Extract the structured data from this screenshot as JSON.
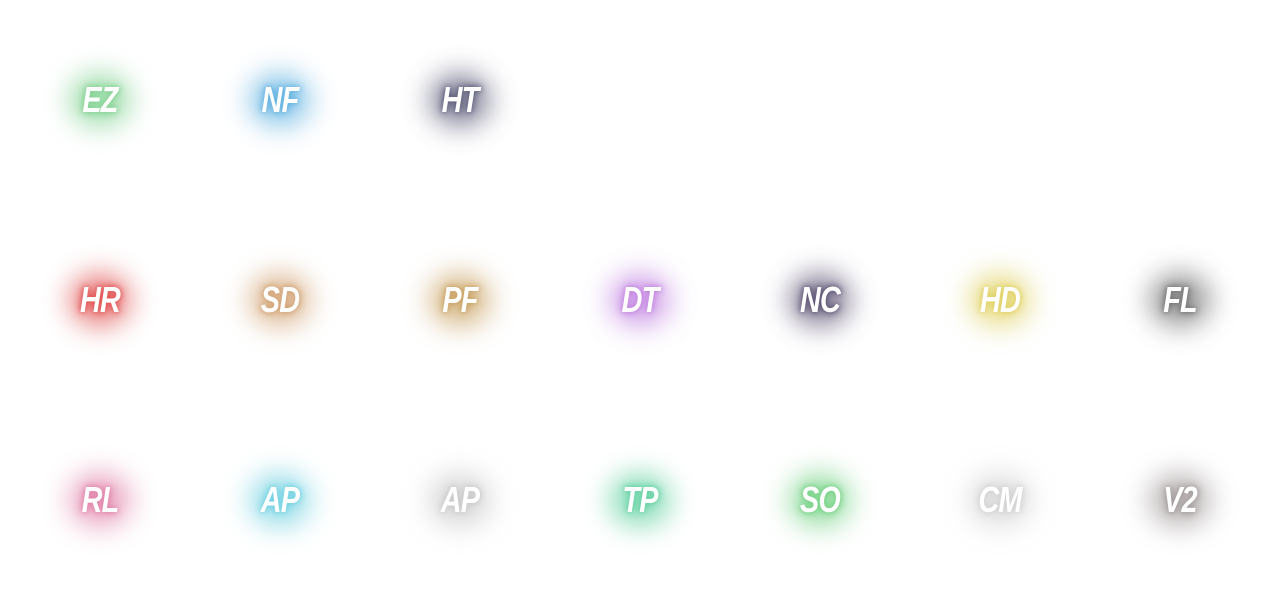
{
  "rows": [
    [
      {
        "label": "EZ",
        "color": "#7fd08f"
      },
      {
        "label": "NF",
        "color": "#5fb0e0"
      },
      {
        "label": "HT",
        "color": "#5a5a78"
      }
    ],
    [
      {
        "label": "HR",
        "color": "#e05050"
      },
      {
        "label": "SD",
        "color": "#d0a070"
      },
      {
        "label": "PF",
        "color": "#c8a060"
      },
      {
        "label": "DT",
        "color": "#c080e0"
      },
      {
        "label": "NC",
        "color": "#5a5070"
      },
      {
        "label": "HD",
        "color": "#e0d060"
      },
      {
        "label": "FL",
        "color": "#707070"
      }
    ],
    [
      {
        "label": "RL",
        "color": "#e080a8"
      },
      {
        "label": "AP",
        "color": "#70d0e0"
      },
      {
        "label": "AP",
        "color": "#c8c8c8"
      },
      {
        "label": "TP",
        "color": "#60d0a0"
      },
      {
        "label": "SO",
        "color": "#70d080"
      },
      {
        "label": "CM",
        "color": "#d0d0d0"
      },
      {
        "label": "V2",
        "color": "#a09898"
      }
    ]
  ]
}
